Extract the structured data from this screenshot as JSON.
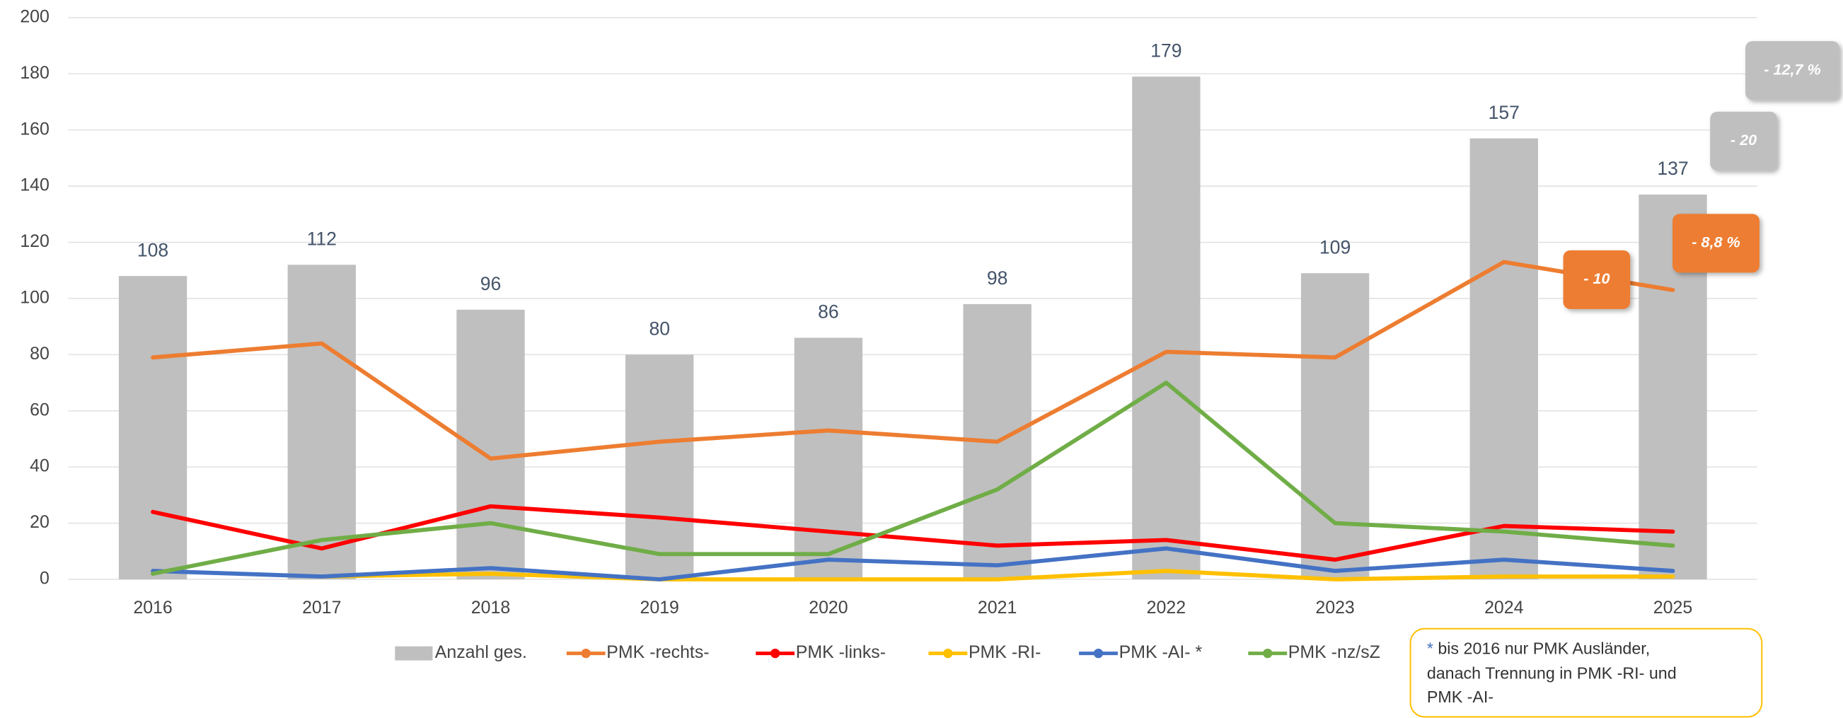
{
  "chart_data": {
    "type": "bar-line",
    "categories": [
      "2016",
      "2017",
      "2018",
      "2019",
      "2020",
      "2021",
      "2022",
      "2023",
      "2024",
      "2025"
    ],
    "series": [
      {
        "name": "Anzahl ges.",
        "kind": "bar",
        "color": "#bfbfbf",
        "values": [
          108,
          112,
          96,
          80,
          86,
          98,
          179,
          109,
          157,
          137
        ]
      },
      {
        "name": "PMK -rechts-",
        "kind": "line",
        "color": "#ed7d31",
        "values": [
          79,
          84,
          43,
          49,
          53,
          49,
          81,
          79,
          113,
          103
        ]
      },
      {
        "name": "PMK -links-",
        "kind": "line",
        "color": "#ff0000",
        "values": [
          24,
          11,
          26,
          22,
          17,
          12,
          14,
          7,
          19,
          17
        ]
      },
      {
        "name": "PMK -RI-",
        "kind": "line",
        "color": "#ffc000",
        "values": [
          null,
          1,
          2,
          0,
          0,
          0,
          3,
          0,
          1,
          1
        ]
      },
      {
        "name": "PMK -AI- *",
        "kind": "line",
        "color": "#4472c4",
        "values": [
          3,
          1,
          4,
          0,
          7,
          5,
          11,
          3,
          7,
          3
        ]
      },
      {
        "name": "PMK -nz/sZ",
        "kind": "line",
        "color": "#70ad47",
        "values": [
          2,
          14,
          20,
          9,
          9,
          32,
          70,
          20,
          17,
          12
        ]
      }
    ],
    "ylim": [
      0,
      200
    ],
    "yticks": [
      0,
      20,
      40,
      60,
      80,
      100,
      120,
      140,
      160,
      180,
      200
    ],
    "grid": true,
    "annotations": [
      {
        "text": "- 12,7 %",
        "color": "#bfbfbf"
      },
      {
        "text": "- 20",
        "color": "#bfbfbf"
      },
      {
        "text": "- 10",
        "color": "#ed7d31"
      },
      {
        "text": "- 8,8 %",
        "color": "#ed7d31"
      }
    ],
    "footnote": {
      "marker": "*",
      "lines": [
        " bis 2016 nur PMK Ausländer,",
        "danach Trennung in PMK -RI- und",
        "PMK -AI-"
      ]
    }
  }
}
